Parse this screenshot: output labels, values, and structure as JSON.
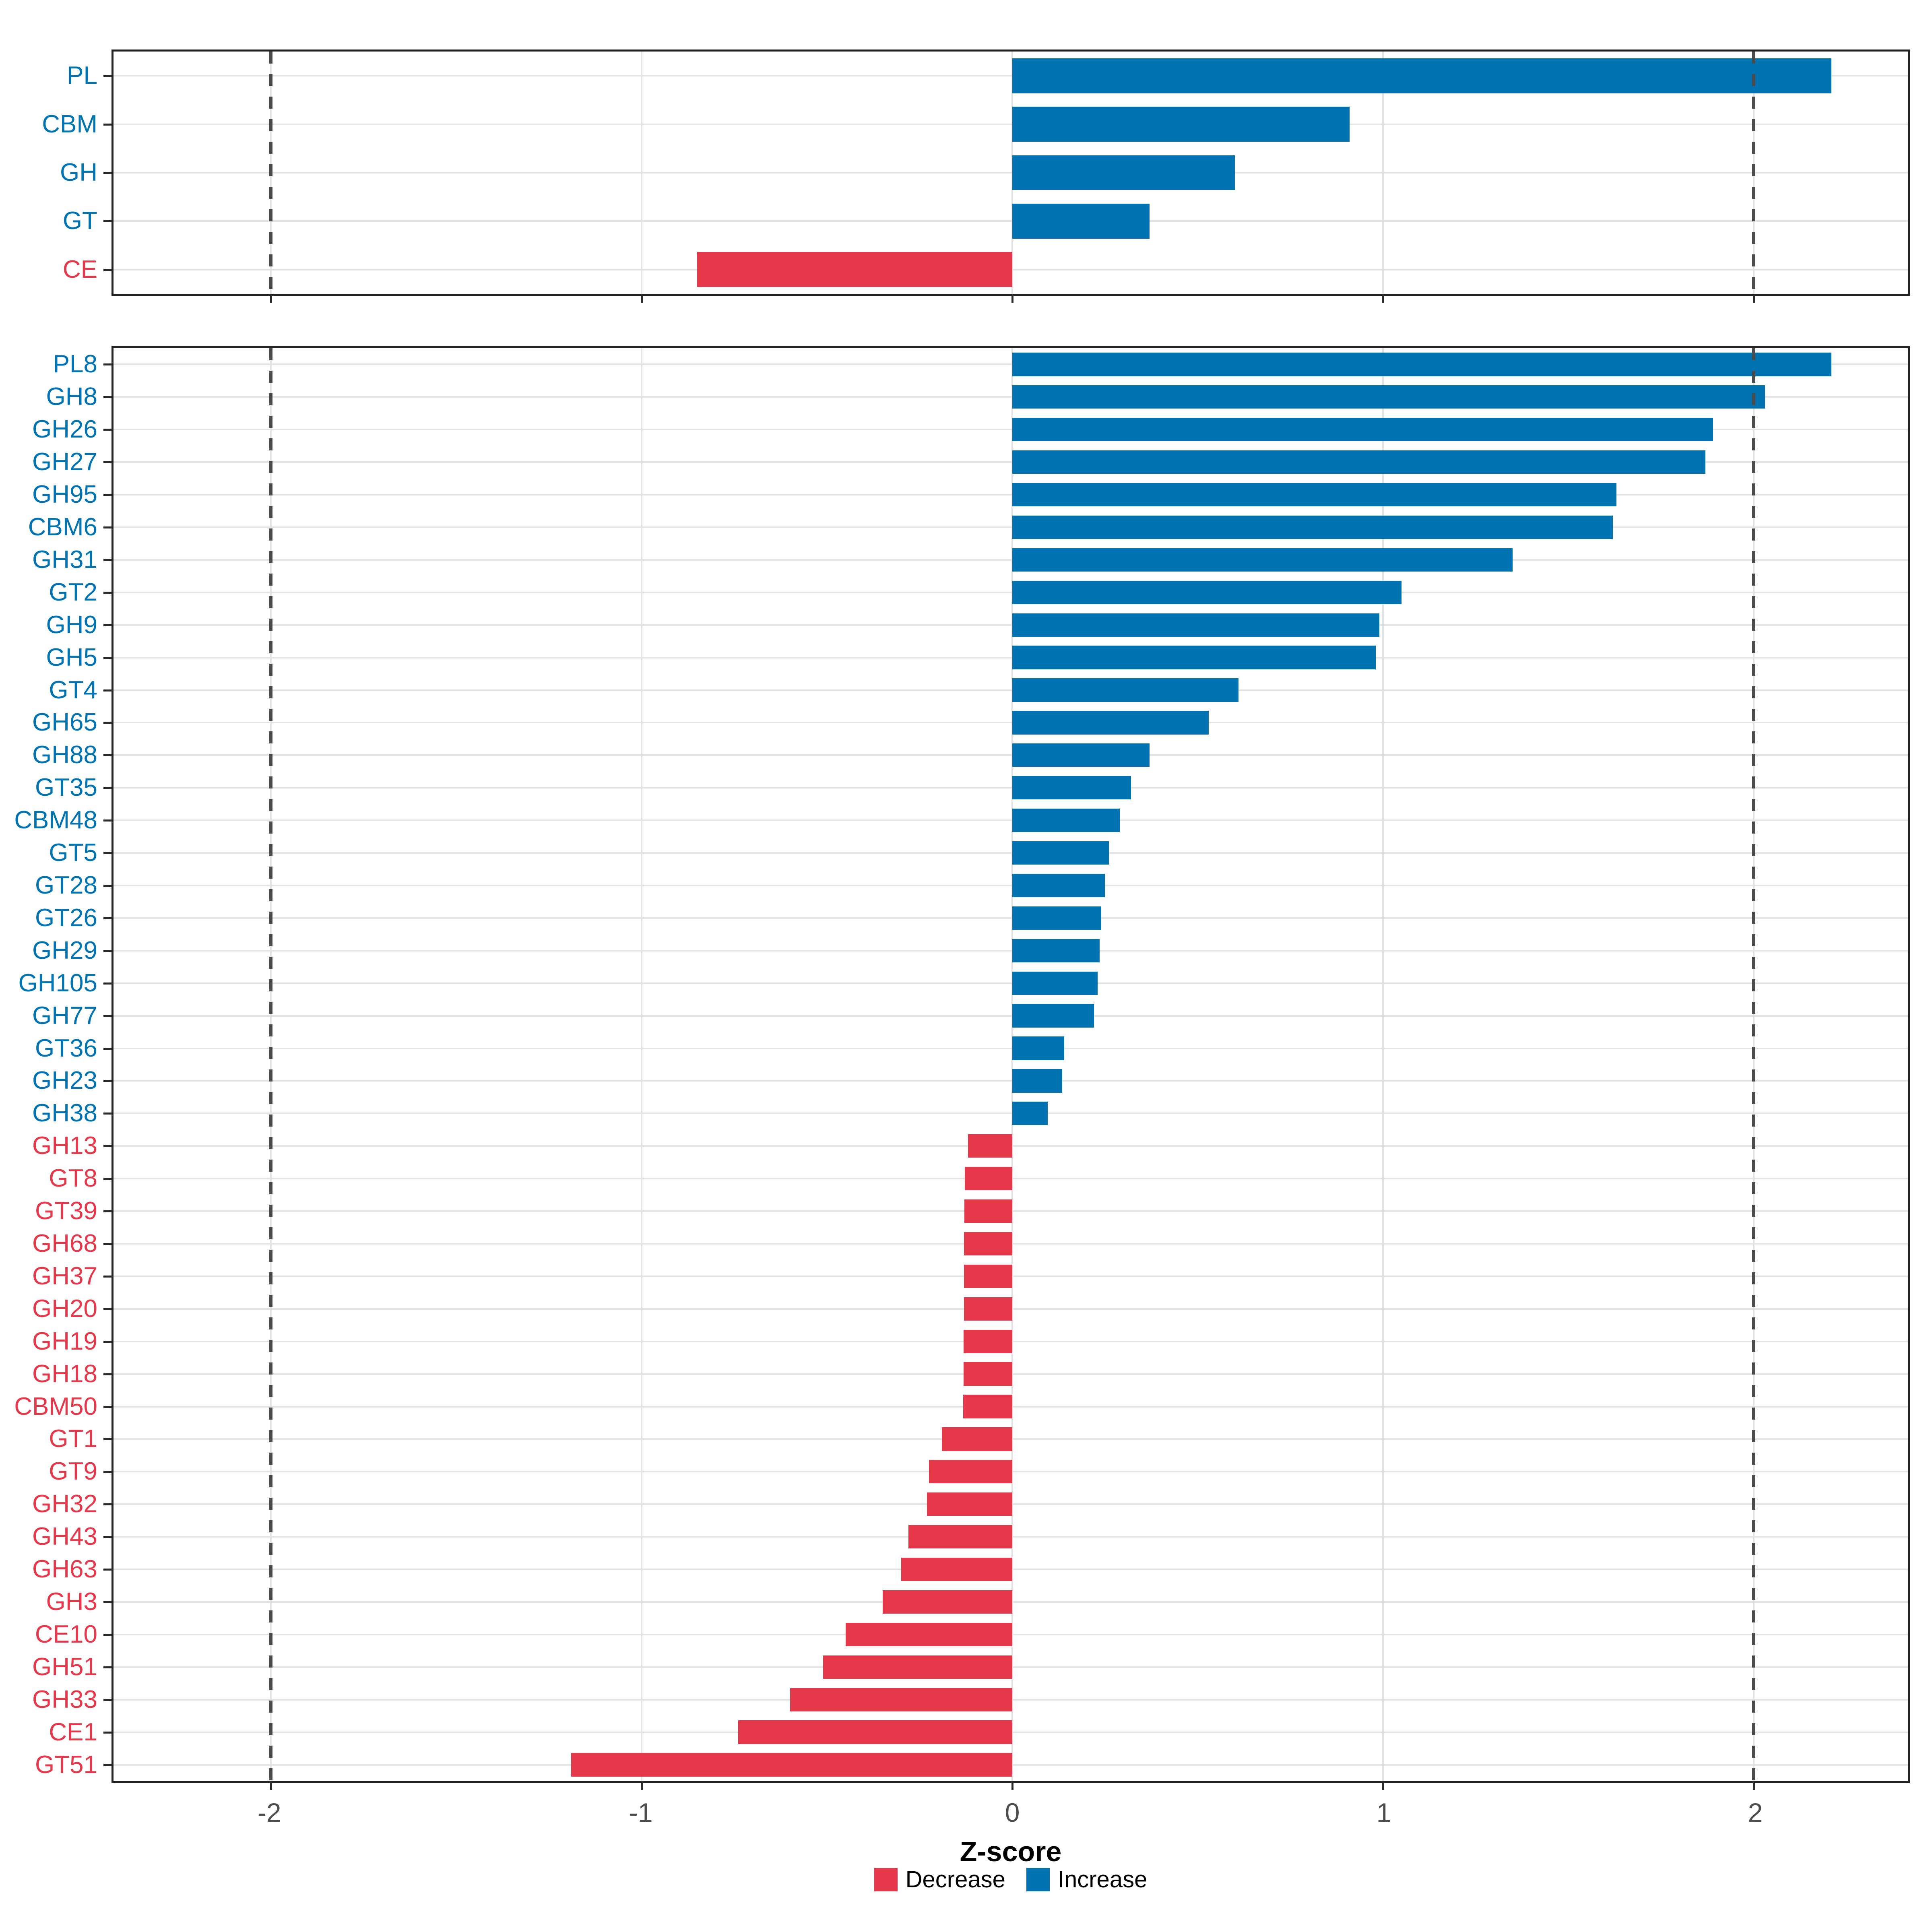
{
  "axis": {
    "label": "Z-score",
    "tick_values": [
      -2,
      -1,
      0,
      1,
      2
    ],
    "tick_labels": [
      "-2",
      "-1",
      "0",
      "1",
      "2"
    ],
    "xmin": -2.425,
    "xmax": 2.416,
    "dashed_lines": [
      -2,
      2
    ],
    "grid": "on"
  },
  "colors": {
    "increase": "#0074B2",
    "decrease": "#E5384A",
    "grid": "#E3E3E3",
    "tick_text": "#4D4D4D",
    "dash_line": "#4A4A4A",
    "panel_border": "#242424"
  },
  "legend": {
    "items": [
      {
        "label": "Decrease",
        "key": "decrease"
      },
      {
        "label": "Increase",
        "key": "increase"
      }
    ]
  },
  "chart_data": [
    {
      "type": "bar",
      "orientation": "horizontal",
      "panel": "cazyme-classes",
      "categories": [
        "PL",
        "CBM",
        "GH",
        "GT",
        "CE"
      ],
      "values": [
        2.21,
        0.91,
        0.6,
        0.37,
        -0.85
      ],
      "xlabel": "Z-score",
      "xlim": [
        -2.425,
        2.416
      ]
    },
    {
      "type": "bar",
      "orientation": "horizontal",
      "panel": "cazyme-families",
      "categories": [
        "PL8",
        "GH8",
        "GH26",
        "GH27",
        "GH95",
        "CBM6",
        "GH31",
        "GT2",
        "GH9",
        "GH5",
        "GT4",
        "GH65",
        "GH88",
        "GT35",
        "CBM48",
        "GT5",
        "GT28",
        "GT26",
        "GH29",
        "GH105",
        "GH77",
        "GT36",
        "GH23",
        "GH38",
        "GH13",
        "GT8",
        "GT39",
        "GH68",
        "GH37",
        "GH20",
        "GH19",
        "GH18",
        "CBM50",
        "GT1",
        "GT9",
        "GH32",
        "GH43",
        "GH63",
        "GH3",
        "CE10",
        "GH51",
        "GH33",
        "CE1",
        "GT51"
      ],
      "values": [
        2.21,
        2.03,
        1.89,
        1.87,
        1.63,
        1.62,
        1.35,
        1.05,
        0.99,
        0.98,
        0.61,
        0.53,
        0.37,
        0.32,
        0.29,
        0.26,
        0.25,
        0.24,
        0.235,
        0.23,
        0.22,
        0.14,
        0.135,
        0.095,
        -0.12,
        -0.128,
        -0.129,
        -0.13,
        -0.13,
        -0.131,
        -0.132,
        -0.132,
        -0.133,
        -0.19,
        -0.225,
        -0.23,
        -0.28,
        -0.3,
        -0.35,
        -0.45,
        -0.51,
        -0.6,
        -0.74,
        -1.19
      ],
      "xlabel": "Z-score",
      "xlim": [
        -2.425,
        2.416
      ]
    }
  ]
}
